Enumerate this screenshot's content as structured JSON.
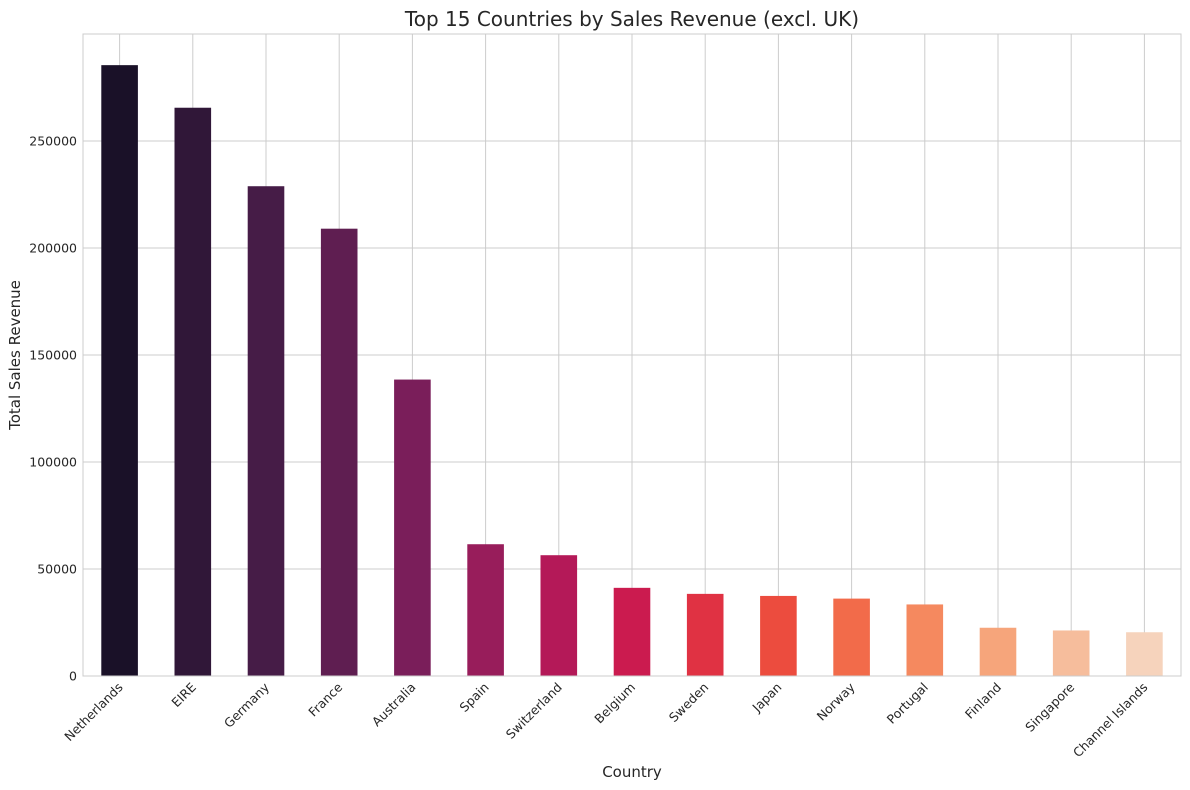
{
  "chart_data": {
    "type": "bar",
    "title": "Top 15 Countries by Sales Revenue (excl. UK)",
    "xlabel": "Country",
    "ylabel": "Total Sales Revenue",
    "categories": [
      "Netherlands",
      "EIRE",
      "Germany",
      "France",
      "Australia",
      "Spain",
      "Switzerland",
      "Belgium",
      "Sweden",
      "Japan",
      "Norway",
      "Portugal",
      "Finland",
      "Singapore",
      "Channel Islands"
    ],
    "values": [
      285446,
      265546,
      228867,
      209024,
      138521,
      61577,
      56444,
      41196,
      38378,
      37416,
      36165,
      33440,
      22546,
      21279,
      20450
    ],
    "colors": [
      "#1a1128",
      "#301738",
      "#461c47",
      "#5f1e51",
      "#7a1e5a",
      "#981d5b",
      "#b41958",
      "#cb1b4f",
      "#e03243",
      "#ec4c3e",
      "#f26b4a",
      "#f5895f",
      "#f6a57b",
      "#f6bd9c",
      "#f6d3bc"
    ],
    "ylim": [
      0,
      300000
    ],
    "yticks": [
      0,
      50000,
      100000,
      150000,
      200000,
      250000
    ],
    "grid": true,
    "legend": "none"
  }
}
